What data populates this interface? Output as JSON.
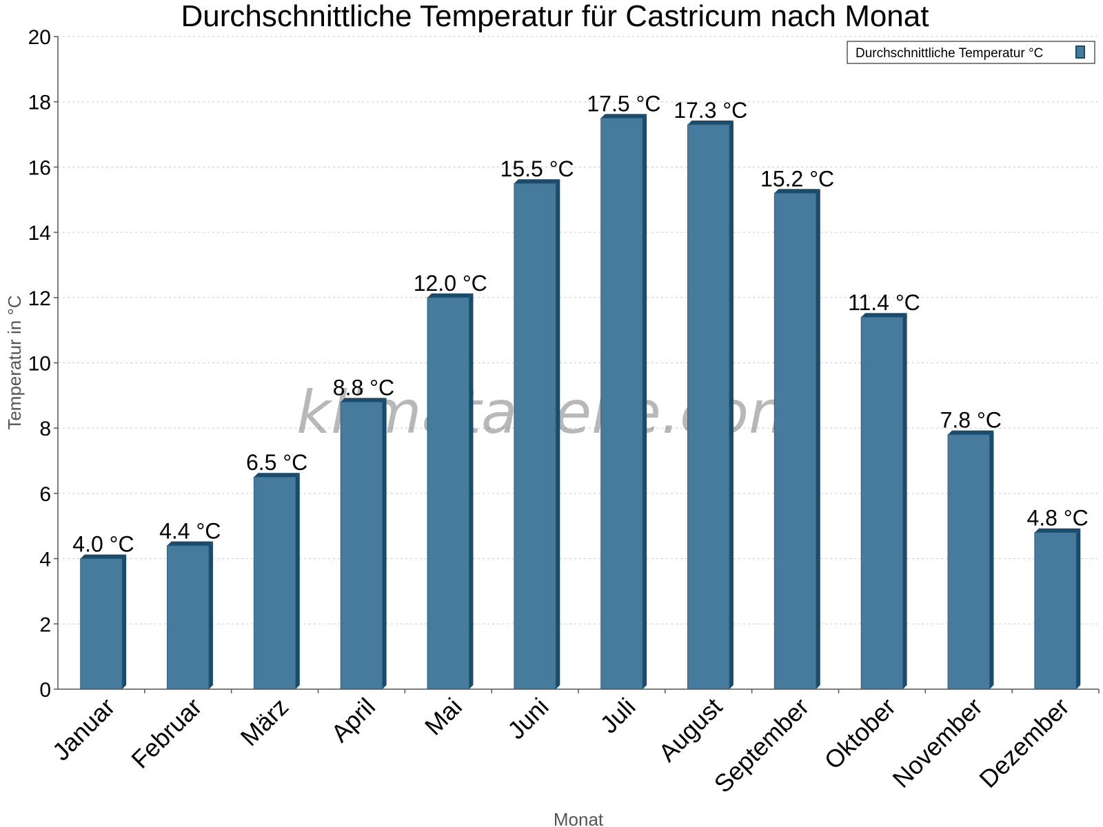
{
  "chart_data": {
    "type": "bar",
    "title": "Durchschnittliche Temperatur für Castricum nach Monat",
    "xlabel": "Monat",
    "ylabel": "Temperatur in °C",
    "categories": [
      "Januar",
      "Februar",
      "März",
      "April",
      "Mai",
      "Juni",
      "Juli",
      "August",
      "September",
      "Oktober",
      "November",
      "Dezember"
    ],
    "series": [
      {
        "name": "Durchschnittliche Temperatur °C",
        "values": [
          4.0,
          4.4,
          6.5,
          8.8,
          12.0,
          15.5,
          17.5,
          17.3,
          15.2,
          11.4,
          7.8,
          4.8
        ],
        "data_labels": [
          "4.0 °C",
          "4.4 °C",
          "6.5 °C",
          "8.8 °C",
          "12.0 °C",
          "15.5 °C",
          "17.5 °C",
          "17.3 °C",
          "15.2 °C",
          "11.4 °C",
          "7.8 °C",
          "4.8 °C"
        ]
      }
    ],
    "ylim": [
      0,
      20
    ],
    "yticks": [
      "0",
      "2",
      "4",
      "6",
      "8",
      "10",
      "12",
      "14",
      "16",
      "18",
      "20"
    ],
    "grid": true,
    "legend_position": "top-right",
    "colors": {
      "bar": "#467b9d",
      "bar_dark": "#1b4a6b",
      "bar_top": "#2a5f82"
    },
    "watermark": "klimatabelle.com"
  }
}
